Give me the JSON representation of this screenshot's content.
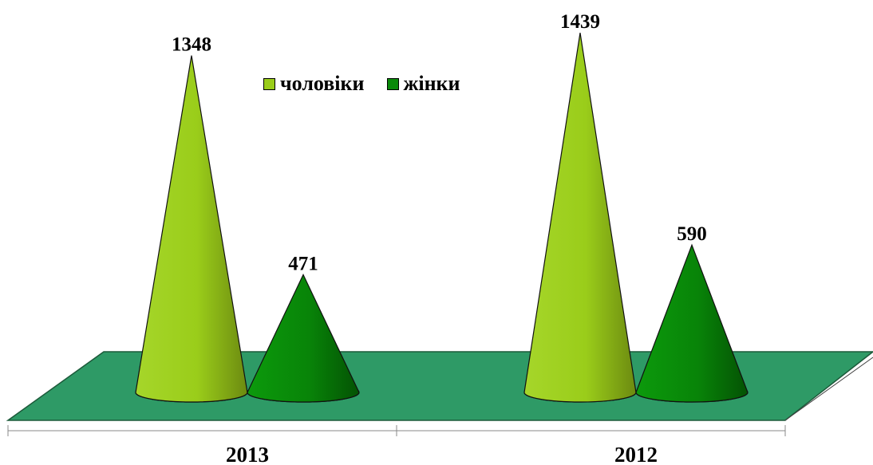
{
  "chart_data": {
    "type": "bar",
    "subtype": "3d-cone",
    "categories": [
      "2013",
      "2012"
    ],
    "series": [
      {
        "name": "чоловіки",
        "values": [
          1348,
          1439
        ],
        "color": "#9acd1a",
        "color_dark": "#6f8f0c"
      },
      {
        "name": "жінки",
        "values": [
          471,
          590
        ],
        "color": "#0a8a0a",
        "color_dark": "#055a05"
      }
    ],
    "floor_color": "#2e9a66",
    "legend_position": "top-center",
    "data_labels": true,
    "grid": false,
    "ylim": [
      0,
      1500
    ]
  }
}
